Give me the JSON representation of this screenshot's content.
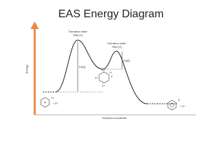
{
  "title": "EAS Energy Diagram",
  "axes": {
    "y_label": "Energy",
    "x_label": "Reaction coordinate"
  },
  "labels": {
    "ts1": [
      "Transition state",
      "Step [1]"
    ],
    "ts2": [
      "Transition state",
      "Step [2]"
    ],
    "ea1": "Ea[1]",
    "ea2": "Ea[2]"
  },
  "molecules": {
    "reactant": {
      "substituent": "H",
      "reagent": "+ E⁺"
    },
    "intermediate": {
      "h": "H",
      "e": "E",
      "charges": [
        "δ+",
        "δ+",
        "δ+"
      ]
    },
    "product": {
      "substituent": "E",
      "reagent": "+ H⁺"
    }
  }
}
